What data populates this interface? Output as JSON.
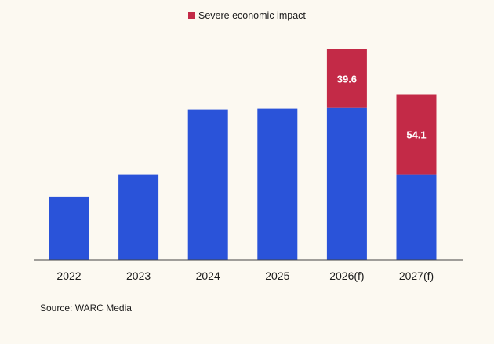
{
  "chart_data": {
    "type": "bar",
    "stacked": true,
    "categories": [
      "2022",
      "2023",
      "2024",
      "2025",
      "2026(f)",
      "2027(f)"
    ],
    "series": [
      {
        "name": "",
        "color": "#2a53d9",
        "values": [
          43,
          58,
          102,
          102.5,
          103,
          58
        ]
      },
      {
        "name": "Severe economic impact",
        "color": "#c32a47",
        "values": [
          0,
          0,
          0,
          0,
          39.6,
          54.1
        ],
        "labels": [
          "",
          "",
          "",
          "",
          "39.6",
          "54.1"
        ]
      }
    ],
    "ylim": [
      0,
      150
    ],
    "grid": false,
    "legend": "top-center",
    "title": "",
    "xlabel": "",
    "ylabel": ""
  },
  "source": "Source: WARC Media"
}
